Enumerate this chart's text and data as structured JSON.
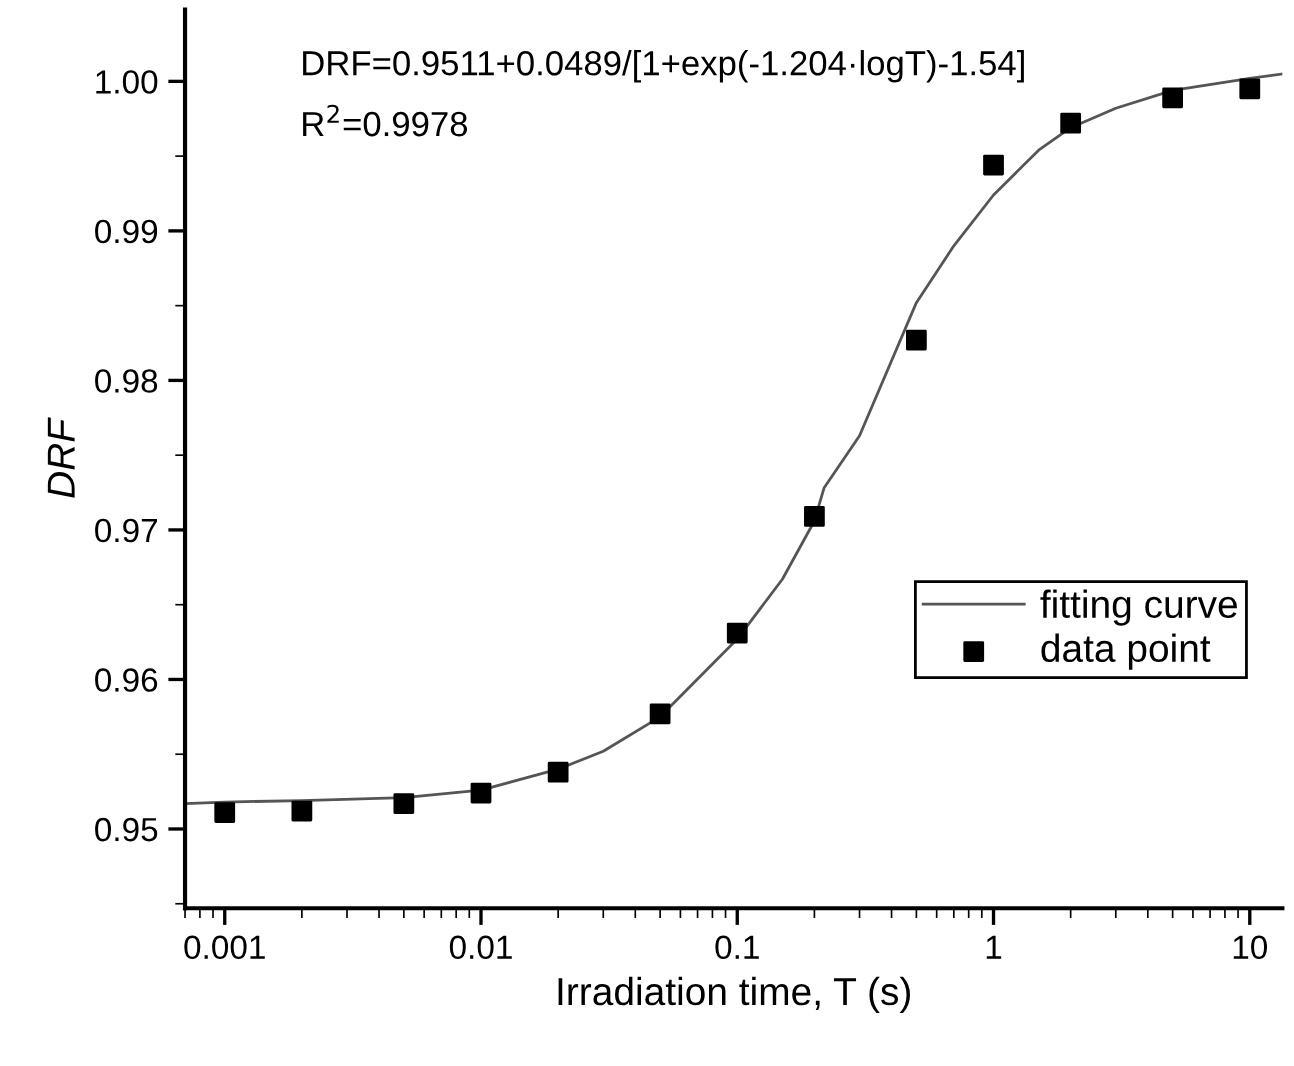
{
  "chart_data": {
    "type": "scatter",
    "xlabel": "Irradiation time, T (s)",
    "ylabel": "DRF",
    "annotations": [
      "DRF=0.9511+0.0489/[1+exp(-1.204·logT)-1.54]",
      "R$^{2}$=0.9978"
    ],
    "log": "x",
    "xlim": [
      0.0007,
      13.4
    ],
    "ylim": [
      0.9447,
      1.0048
    ],
    "xticks": [
      0.001,
      0.01,
      0.1,
      1,
      10
    ],
    "yticks": [
      0.95,
      0.96,
      0.97,
      0.98,
      0.99,
      {
        "value": 1.0,
        "label": "1.00"
      }
    ],
    "legend": "right",
    "grid": false,
    "series": [
      {
        "name": "fitting curve",
        "type": "line",
        "color": "#555555",
        "marker": "none",
        "line_style": "solid",
        "x": [
          0.0007,
          0.001,
          0.002,
          0.005,
          0.01,
          0.02,
          0.03,
          0.05,
          0.1,
          0.15,
          0.2,
          0.218,
          0.3,
          0.5,
          0.7,
          1,
          1.5,
          2,
          3,
          5,
          10,
          13.4
        ],
        "values": [
          0.9517,
          0.9518,
          0.9519,
          0.9521,
          0.9526,
          0.954,
          0.9552,
          0.9575,
          0.9627,
          0.9667,
          0.9706,
          0.9728,
          0.9763,
          0.9852,
          0.989,
          0.9924,
          0.9954,
          0.9969,
          0.9982,
          0.9994,
          1.0002,
          1.0005
        ]
      },
      {
        "name": "data point",
        "color": "#000000",
        "marker": "square",
        "x": [
          0.001,
          0.002,
          0.005,
          0.01,
          0.02,
          0.05,
          0.1,
          0.2,
          0.5,
          1,
          2,
          5,
          10
        ],
        "values": [
          0.9511,
          0.9512,
          0.9517,
          0.9524,
          0.9538,
          0.9577,
          0.9631,
          0.9709,
          0.9827,
          0.9944,
          0.9972,
          0.9989,
          0.9995
        ]
      }
    ]
  }
}
